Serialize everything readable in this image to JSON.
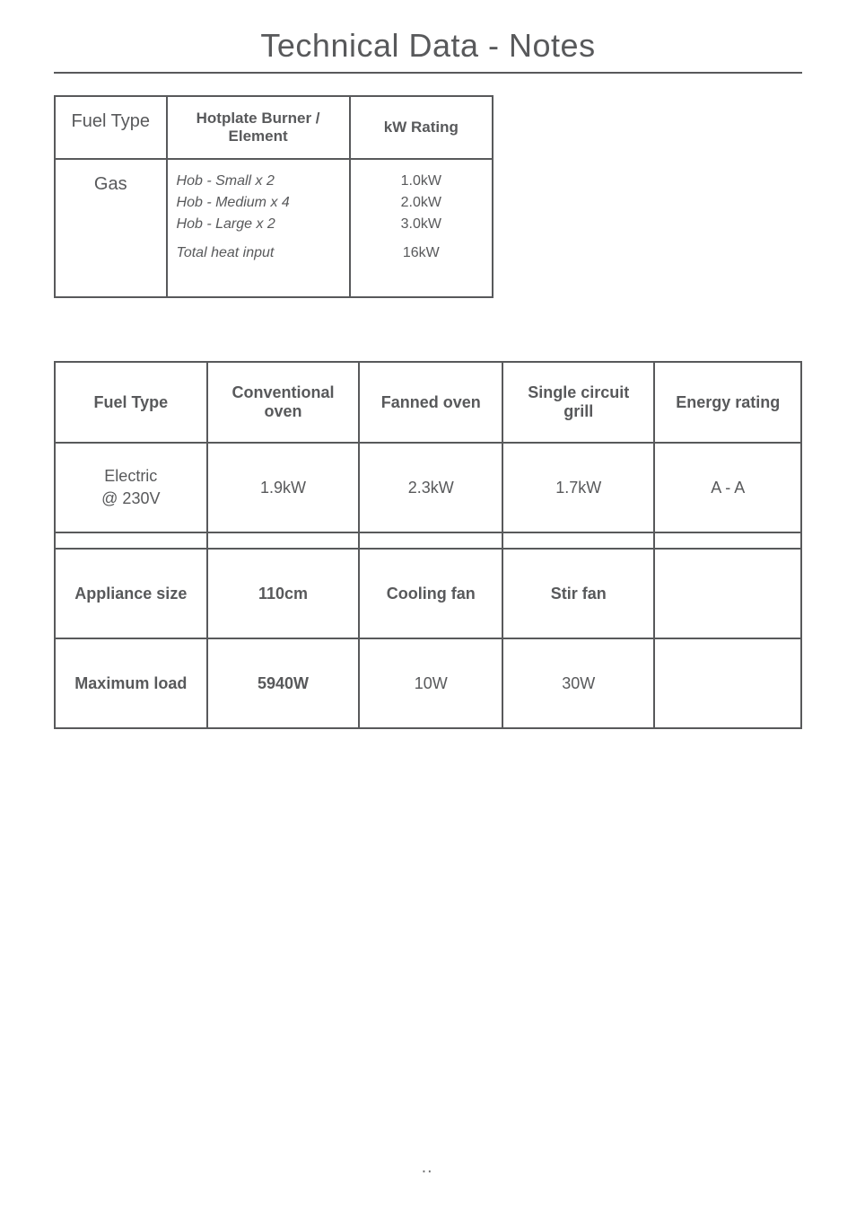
{
  "title": "Technical Data - Notes",
  "table1": {
    "headers": {
      "fuel_type": "Fuel Type",
      "hotplate": "Hotplate Burner / Element",
      "kw_rating": "kW Rating"
    },
    "row": {
      "fuel_type": "Gas",
      "hob_small": "Hob - Small x 2",
      "hob_medium": "Hob - Medium x 4",
      "hob_large": "Hob - Large x 2",
      "total_label": "Total heat input",
      "kw_small": "1.0kW",
      "kw_medium": "2.0kW",
      "kw_large": "3.0kW",
      "kw_total": "16kW"
    }
  },
  "table2": {
    "headers": {
      "fuel_type": "Fuel Type",
      "conv_oven": "Conventional oven",
      "fanned_oven": "Fanned oven",
      "single_grill": "Single circuit grill",
      "energy_rating": "Energy rating"
    },
    "electric_row": {
      "label_line1": "Electric",
      "label_line2": "@ 230V",
      "conv": "1.9kW",
      "fanned": "2.3kW",
      "grill": "1.7kW",
      "energy": "A - A"
    },
    "appliance_row": {
      "label": "Appliance size",
      "size": "110cm",
      "cooling_fan_h": "Cooling fan",
      "stir_fan_h": "Stir fan"
    },
    "max_row": {
      "label": "Maximum load",
      "load": "5940W",
      "cooling_fan": "10W",
      "stir_fan": "30W"
    }
  },
  "page_number": "··",
  "colors": {
    "text": "#58595b",
    "border": "#58595b",
    "background": "#ffffff"
  }
}
